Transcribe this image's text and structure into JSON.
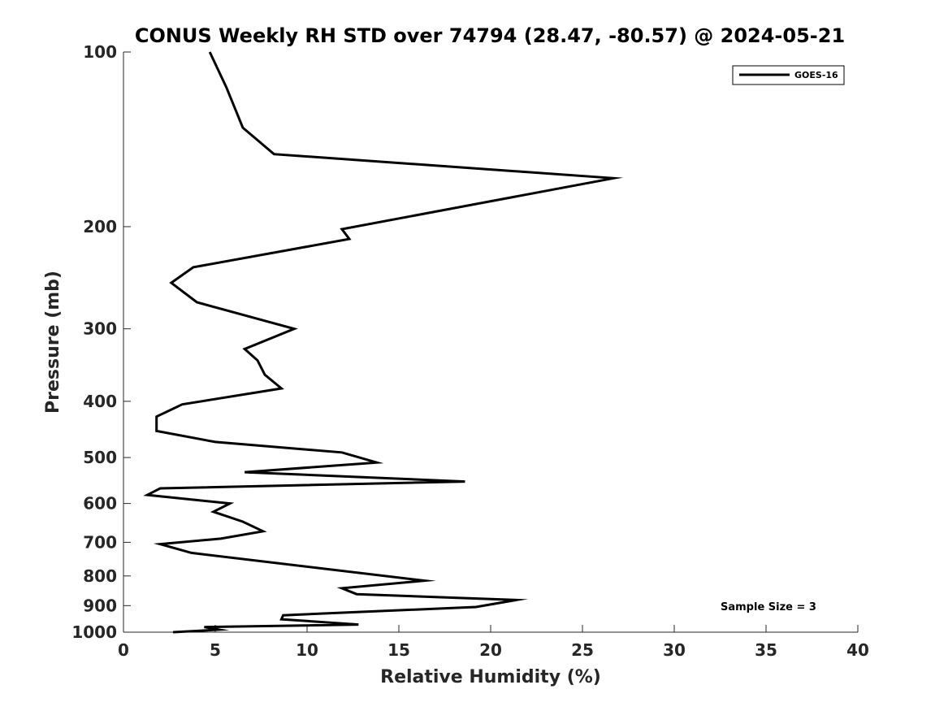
{
  "chart_data": {
    "type": "line",
    "title": "CONUS Weekly RH STD over 74794 (28.47, -80.57) @ 2024-05-21",
    "xlabel": "Relative Humidity (%)",
    "ylabel": "Pressure (mb)",
    "xlim": [
      0,
      40
    ],
    "ylim": [
      1000,
      100
    ],
    "y_scale": "log",
    "y_reversed": true,
    "grid": false,
    "legend_position": "top-right",
    "xticks": [
      0,
      5,
      10,
      15,
      20,
      25,
      30,
      35,
      40
    ],
    "xtick_labels": [
      "0",
      "5",
      "10",
      "15",
      "20",
      "25",
      "30",
      "35",
      "40"
    ],
    "yticks": [
      100,
      200,
      300,
      400,
      500,
      600,
      700,
      800,
      900,
      1000
    ],
    "ytick_labels": [
      "100",
      "200",
      "300",
      "400",
      "500",
      "600",
      "700",
      "800",
      "900",
      "1000"
    ],
    "annotation": "Sample Size = 3",
    "series": [
      {
        "name": "GOES-16",
        "color": "#000000",
        "x": [
          4.7,
          5.6,
          6.5,
          8.2,
          26.7,
          11.9,
          12.3,
          3.8,
          2.6,
          4.0,
          9.3,
          6.6,
          7.3,
          7.7,
          8.6,
          3.2,
          1.8,
          1.8,
          5.0,
          11.9,
          13.8,
          6.6,
          18.6,
          2.0,
          1.3,
          5.8,
          4.9,
          6.5,
          7.6,
          5.3,
          2.0,
          3.7,
          16.4,
          11.9,
          12.7,
          21.4,
          19.2,
          8.7,
          8.6,
          12.8,
          4.4,
          5.2,
          2.7
        ],
        "y": [
          100,
          115,
          135,
          150,
          165,
          202,
          210,
          235,
          250,
          270,
          300,
          325,
          340,
          360,
          380,
          405,
          425,
          450,
          470,
          490,
          510,
          530,
          550,
          565,
          580,
          600,
          620,
          645,
          670,
          690,
          705,
          730,
          815,
          840,
          860,
          880,
          905,
          935,
          950,
          970,
          980,
          990,
          1000
        ]
      }
    ]
  }
}
